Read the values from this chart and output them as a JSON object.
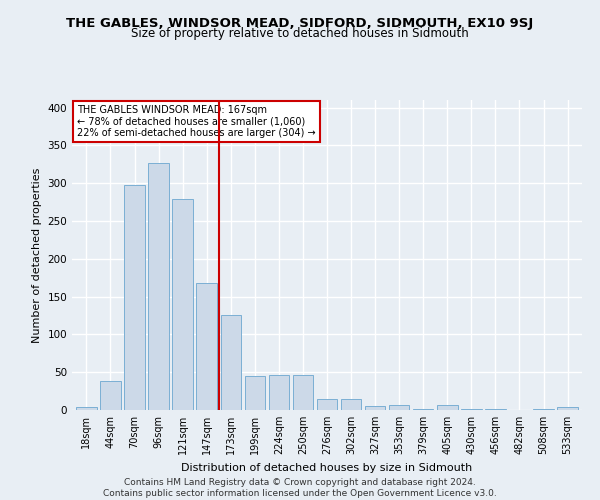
{
  "title": "THE GABLES, WINDSOR MEAD, SIDFORD, SIDMOUTH, EX10 9SJ",
  "subtitle": "Size of property relative to detached houses in Sidmouth",
  "xlabel": "Distribution of detached houses by size in Sidmouth",
  "ylabel": "Number of detached properties",
  "bar_color": "#ccd9e8",
  "bar_edge_color": "#7bafd4",
  "categories": [
    "18sqm",
    "44sqm",
    "70sqm",
    "96sqm",
    "121sqm",
    "147sqm",
    "173sqm",
    "199sqm",
    "224sqm",
    "250sqm",
    "276sqm",
    "302sqm",
    "327sqm",
    "353sqm",
    "379sqm",
    "405sqm",
    "430sqm",
    "456sqm",
    "482sqm",
    "508sqm",
    "533sqm"
  ],
  "values": [
    4,
    39,
    297,
    327,
    279,
    168,
    125,
    45,
    46,
    46,
    15,
    15,
    5,
    6,
    1,
    6,
    1,
    1,
    0,
    1,
    4
  ],
  "vline_index": 6,
  "vline_color": "#cc0000",
  "annotation_text": "THE GABLES WINDSOR MEAD: 167sqm\n← 78% of detached houses are smaller (1,060)\n22% of semi-detached houses are larger (304) →",
  "annotation_box_color": "#ffffff",
  "annotation_box_edge": "#cc0000",
  "ylim": [
    0,
    410
  ],
  "yticks": [
    0,
    50,
    100,
    150,
    200,
    250,
    300,
    350,
    400
  ],
  "footer1": "Contains HM Land Registry data © Crown copyright and database right 2024.",
  "footer2": "Contains public sector information licensed under the Open Government Licence v3.0.",
  "background_color": "#e8eef4",
  "plot_bg_color": "#e8eef4",
  "grid_color": "#ffffff",
  "title_fontsize": 9.5,
  "subtitle_fontsize": 8.5,
  "tick_fontsize": 7,
  "ylabel_fontsize": 8,
  "xlabel_fontsize": 8,
  "footer_fontsize": 6.5,
  "annotation_fontsize": 7
}
